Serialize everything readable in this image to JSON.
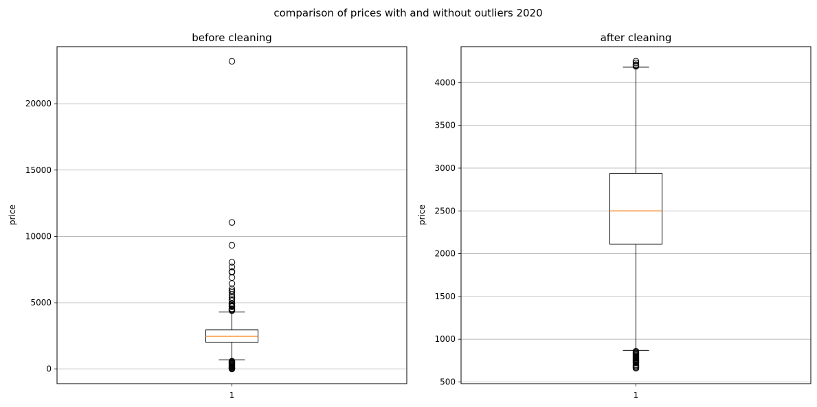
{
  "figure_title": "comparison of prices with and without outliers 2020",
  "chart_data": [
    {
      "type": "boxplot",
      "title": "before cleaning",
      "xlabel": "",
      "ylabel": "price",
      "categories": [
        "1"
      ],
      "ylim": [
        -1100,
        24300
      ],
      "yticks": [
        0,
        5000,
        10000,
        15000,
        20000
      ],
      "grid": "y",
      "box": {
        "q1": 2020,
        "median": 2470,
        "q3": 2950,
        "whisker_low": 700,
        "whisker_high": 4300
      },
      "outliers": [
        23200,
        11050,
        9330,
        8050,
        7700,
        7350,
        7300,
        6900,
        6450,
        6050,
        5900,
        5800,
        5600,
        5400,
        5250,
        5150,
        4950,
        4900,
        4800,
        4750,
        4700,
        4550,
        4500,
        4450,
        4400,
        600,
        550,
        500,
        450,
        400,
        350,
        300,
        250,
        200,
        150,
        100,
        60,
        30,
        10
      ],
      "colors": {
        "median": "#ff7f0e",
        "box": "#000000",
        "grid": "#b0b0b0"
      }
    },
    {
      "type": "boxplot",
      "title": "after cleaning",
      "xlabel": "",
      "ylabel": "price",
      "categories": [
        "1"
      ],
      "ylim": [
        480,
        4420
      ],
      "yticks": [
        500,
        1000,
        1500,
        2000,
        2500,
        3000,
        3500,
        4000
      ],
      "grid": "y",
      "box": {
        "q1": 2110,
        "median": 2500,
        "q3": 2940,
        "whisker_low": 870,
        "whisker_high": 4180
      },
      "outliers": [
        4250,
        4230,
        4210,
        4200,
        4190,
        860,
        850,
        840,
        830,
        820,
        810,
        800,
        790,
        780,
        770,
        760,
        750,
        740,
        730,
        720,
        700,
        690,
        680,
        670,
        660
      ],
      "colors": {
        "median": "#ff7f0e",
        "box": "#000000",
        "grid": "#b0b0b0"
      }
    }
  ]
}
